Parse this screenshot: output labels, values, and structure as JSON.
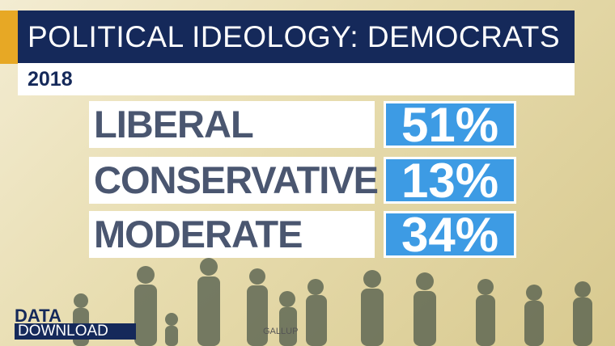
{
  "header": {
    "title": "POLITICAL IDEOLOGY: DEMOCRATS",
    "subtitle": "2018"
  },
  "rows": [
    {
      "label": "LIBERAL",
      "value": "51%"
    },
    {
      "label": "CONSERVATIVE",
      "value": "13%"
    },
    {
      "label": "MODERATE",
      "value": "34%"
    }
  ],
  "logo": {
    "line1": "DATA",
    "line2": "DOWNLOAD"
  },
  "source": "GALLUP"
}
